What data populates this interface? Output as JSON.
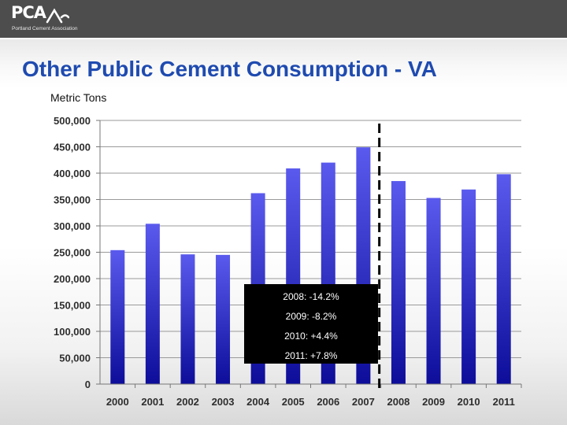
{
  "header": {
    "logo": {
      "mark": "PCA",
      "subtitle": "Portland Cement Association"
    }
  },
  "title": "Other Public Cement Consumption - VA",
  "unit_label": "Metric Tons",
  "colors": {
    "header_bg": "#4d4d4d",
    "title": "#1f4bb0",
    "bar_top": "#5a5aee",
    "bar_bottom": "#0d0d9a",
    "callout_bg": "#000000",
    "callout_text": "#ffffff"
  },
  "chart_data": {
    "type": "bar",
    "title": "Other Public Cement Consumption - VA",
    "ylabel": "Metric Tons",
    "xlabel": "",
    "ylim": [
      0,
      500000
    ],
    "y_ticks": [
      0,
      50000,
      100000,
      150000,
      200000,
      250000,
      300000,
      350000,
      400000,
      450000,
      500000
    ],
    "y_tick_labels": [
      "0",
      "50,000",
      "100,000",
      "150,000",
      "200,000",
      "250,000",
      "300,000",
      "350,000",
      "400,000",
      "450,000",
      "500,000"
    ],
    "grid": true,
    "categories": [
      "2000",
      "2001",
      "2002",
      "2003",
      "2004",
      "2005",
      "2006",
      "2007",
      "2008",
      "2009",
      "2010",
      "2011"
    ],
    "values": [
      254000,
      304000,
      246000,
      245000,
      362000,
      409000,
      420000,
      449000,
      385000,
      353000,
      369000,
      398000
    ],
    "divider_after_category": "2007",
    "annotations": [
      "2008: -14.2%",
      "2009:  -8.2%",
      "2010: +4.4%",
      "2011: +7.8%"
    ]
  }
}
